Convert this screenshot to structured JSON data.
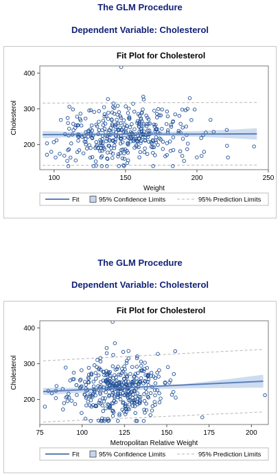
{
  "top": {
    "proc_title": "The GLM Procedure",
    "dep_title": "Dependent Variable: Cholesterol"
  },
  "bottom": {
    "proc_title": "The GLM Procedure",
    "dep_title": "Dependent Variable: Cholesterol"
  },
  "colors": {
    "points": "#1f4f96",
    "fit_line": "#5b7fb8",
    "confidence_band": "#c5d6ee",
    "prediction_line": "#b5b5b5"
  },
  "chart_data": [
    {
      "type": "scatter",
      "title": "Fit Plot for Cholesterol",
      "xlabel": "Weight",
      "ylabel": "Cholesterol",
      "xlim": [
        90,
        250
      ],
      "ylim": [
        130,
        420
      ],
      "xticks": [
        100,
        150,
        200,
        250
      ],
      "yticks": [
        200,
        300,
        400
      ],
      "legend": {
        "placement": "bottom",
        "entries": [
          "Fit",
          "95% Confidence Limits",
          "95% Prediction Limits"
        ]
      },
      "fit": {
        "x": [
          92,
          242
        ],
        "y": [
          228,
          230
        ]
      },
      "confidence": {
        "x": [
          92,
          130,
          150,
          170,
          200,
          225,
          242
        ],
        "lower": [
          218,
          224,
          226,
          225,
          222,
          218,
          214
        ],
        "upper": [
          238,
          234,
          233,
          235,
          238,
          242,
          246
        ]
      },
      "prediction": {
        "x": [
          92,
          242
        ],
        "lower": [
          142,
          143
        ],
        "upper": [
          316,
          318
        ]
      },
      "points": {
        "seed": 7,
        "count": 380,
        "x_mean": 150,
        "x_sd": 23,
        "x_range": [
          95,
          245
        ],
        "y_mean": 228,
        "y_sd": 42,
        "y_range": [
          140,
          360
        ],
        "extra": [
          [
            147,
            417
          ],
          [
            98,
            180
          ],
          [
            110,
            140
          ],
          [
            205,
            180
          ],
          [
            240,
            195
          ],
          [
            195,
            330
          ]
        ]
      }
    },
    {
      "type": "scatter",
      "title": "Fit Plot for Cholesterol",
      "xlabel": "Metropolitan Relative Weight",
      "ylabel": "Cholesterol",
      "xlim": [
        75,
        210
      ],
      "ylim": [
        130,
        420
      ],
      "xticks": [
        75,
        100,
        125,
        150,
        175,
        200
      ],
      "yticks": [
        200,
        300,
        400
      ],
      "legend": {
        "placement": "bottom",
        "entries": [
          "Fit",
          "95% Confidence Limits",
          "95% Prediction Limits"
        ]
      },
      "fit": {
        "x": [
          77,
          207
        ],
        "y": [
          222,
          251
        ]
      },
      "confidence": {
        "x": [
          77,
          100,
          120,
          140,
          160,
          185,
          207
        ],
        "lower": [
          212,
          219,
          225,
          228,
          231,
          232,
          233
        ],
        "upper": [
          232,
          233,
          234,
          237,
          243,
          256,
          269
        ]
      },
      "prediction": {
        "x": [
          77,
          207
        ],
        "lower": [
          137,
          165
        ],
        "upper": [
          308,
          340
        ]
      },
      "points": {
        "seed": 23,
        "count": 390,
        "x_mean": 120,
        "x_sd": 14,
        "x_range": [
          80,
          170
        ],
        "y_mean": 228,
        "y_sd": 42,
        "y_range": [
          140,
          360
        ],
        "extra": [
          [
            118,
            417
          ],
          [
            208,
            212
          ],
          [
            171,
            150
          ],
          [
            155,
            335
          ],
          [
            78,
            180
          ]
        ]
      }
    }
  ]
}
